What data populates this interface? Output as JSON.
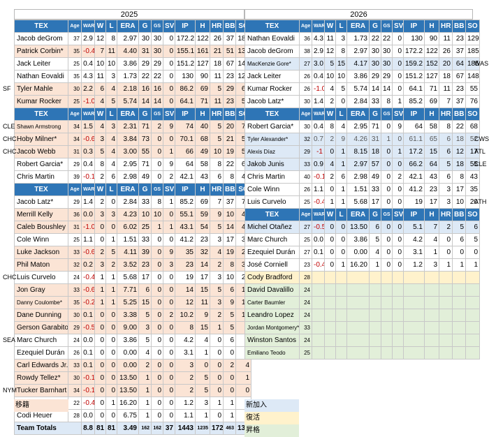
{
  "years": {
    "left": "2025",
    "right": "2026"
  },
  "headers": [
    "TEX",
    "Age",
    "WAR",
    "W",
    "L",
    "ERA",
    "G",
    "GS",
    "SV",
    "IP",
    "H",
    "HR",
    "BB",
    "SO"
  ],
  "left_notes": {
    "b1_4": "SF",
    "b2_0": "CLE",
    "b2_1": "CHC",
    "b2_2": "CHC",
    "b3_6": "CHC",
    "b3_11": "SEA",
    "b3_15": "NYM"
  },
  "right_notes": {
    "b1_2": "WAS",
    "b2_1": "CWS",
    "b2_2": "ATL",
    "b2_3": "CLE",
    "b3_0": "ATH"
  },
  "left": {
    "block1": [
      {
        "s": "plain",
        "name": "Jacob deGrom",
        "age": "37",
        "war": "2.9",
        "w": "12",
        "l": "8",
        "era": "2.97",
        "g": "30",
        "gs": "30",
        "sv": "0",
        "ip": "172.2",
        "h": "122",
        "hr": "26",
        "bb": "37",
        "so": "185"
      },
      {
        "s": "out",
        "name": "Patrick Corbin*",
        "age": "35",
        "war": "-0.4",
        "w": "7",
        "l": "11",
        "era": "4.40",
        "g": "31",
        "gs": "30",
        "sv": "0",
        "ip": "155.1",
        "h": "161",
        "hr": "21",
        "bb": "51",
        "so": "131"
      },
      {
        "s": "plain",
        "name": "Jack Leiter",
        "age": "25",
        "war": "0.4",
        "w": "10",
        "l": "10",
        "era": "3.86",
        "g": "29",
        "gs": "29",
        "sv": "0",
        "ip": "151.2",
        "h": "127",
        "hr": "18",
        "bb": "67",
        "so": "148"
      },
      {
        "s": "plain",
        "name": "Nathan Eovaldi",
        "age": "35",
        "war": "4.3",
        "w": "11",
        "l": "3",
        "era": "1.73",
        "g": "22",
        "gs": "22",
        "sv": "0",
        "ip": "130",
        "h": "90",
        "hr": "11",
        "bb": "23",
        "so": "129"
      },
      {
        "s": "out",
        "name": "Tyler Mahle",
        "age": "30",
        "war": "2.2",
        "w": "6",
        "l": "4",
        "era": "2.18",
        "g": "16",
        "gs": "16",
        "sv": "0",
        "ip": "86.2",
        "h": "69",
        "hr": "5",
        "bb": "29",
        "so": "66"
      },
      {
        "s": "out",
        "name": "Kumar Rocker",
        "age": "25",
        "war": "-1.0",
        "w": "4",
        "l": "5",
        "era": "5.74",
        "g": "14",
        "gs": "14",
        "sv": "0",
        "ip": "64.1",
        "h": "71",
        "hr": "11",
        "bb": "23",
        "so": "55"
      }
    ],
    "block2": [
      {
        "s": "out",
        "name": "Shawn Armstrong",
        "sm": true,
        "age": "34",
        "war": "1.5",
        "w": "4",
        "l": "3",
        "era": "2.31",
        "g": "71",
        "gs": "2",
        "sv": "9",
        "ip": "74",
        "h": "40",
        "hr": "5",
        "bb": "20",
        "so": "74"
      },
      {
        "s": "out",
        "name": "Hoby Milner*",
        "age": "34",
        "war": "-0.6",
        "w": "3",
        "l": "4",
        "era": "3.84",
        "g": "73",
        "gs": "0",
        "sv": "0",
        "ip": "70.1",
        "h": "68",
        "hr": "5",
        "bb": "21",
        "so": "58"
      },
      {
        "s": "out",
        "name": "Jacob Webb",
        "age": "31",
        "war": "0.3",
        "w": "5",
        "l": "4",
        "era": "3.00",
        "g": "55",
        "gs": "0",
        "sv": "1",
        "ip": "66",
        "h": "49",
        "hr": "10",
        "bb": "19",
        "so": "58"
      },
      {
        "s": "plain",
        "name": "Robert Garcia*",
        "age": "29",
        "war": "0.4",
        "w": "8",
        "l": "4",
        "era": "2.95",
        "g": "71",
        "gs": "0",
        "sv": "9",
        "ip": "64",
        "h": "58",
        "hr": "8",
        "bb": "22",
        "so": "68"
      },
      {
        "s": "plain",
        "name": "Chris Martin",
        "age": "39",
        "war": "-0.1",
        "w": "2",
        "l": "6",
        "era": "2.98",
        "g": "49",
        "gs": "0",
        "sv": "2",
        "ip": "42.1",
        "h": "43",
        "hr": "6",
        "bb": "8",
        "so": "43"
      }
    ],
    "block3": [
      {
        "s": "plain",
        "name": "Jacob Latz*",
        "age": "29",
        "war": "1.4",
        "w": "2",
        "l": "0",
        "era": "2.84",
        "g": "33",
        "gs": "8",
        "sv": "1",
        "ip": "85.2",
        "h": "69",
        "hr": "7",
        "bb": "37",
        "so": "76"
      },
      {
        "s": "out",
        "name": "Merrill Kelly",
        "age": "36",
        "war": "0.0",
        "w": "3",
        "l": "3",
        "era": "4.23",
        "g": "10",
        "gs": "10",
        "sv": "0",
        "ip": "55.1",
        "h": "59",
        "hr": "9",
        "bb": "10",
        "so": "46"
      },
      {
        "s": "out",
        "name": "Caleb Boushley",
        "age": "31",
        "war": "-1.0",
        "w": "0",
        "l": "0",
        "era": "6.02",
        "g": "25",
        "gs": "1",
        "sv": "1",
        "ip": "43.1",
        "h": "54",
        "hr": "5",
        "bb": "14",
        "so": "41"
      },
      {
        "s": "plain",
        "name": "Cole Winn",
        "age": "25",
        "war": "1.1",
        "w": "0",
        "l": "1",
        "era": "1.51",
        "g": "33",
        "gs": "0",
        "sv": "0",
        "ip": "41.2",
        "h": "23",
        "hr": "3",
        "bb": "17",
        "so": "35"
      },
      {
        "s": "out",
        "name": "Luke Jackson",
        "age": "33",
        "war": "-0.6",
        "w": "2",
        "l": "5",
        "era": "4.11",
        "g": "39",
        "gs": "0",
        "sv": "9",
        "ip": "35",
        "h": "32",
        "hr": "4",
        "bb": "19",
        "so": "24"
      },
      {
        "s": "out",
        "name": "Phil Maton",
        "age": "32",
        "war": "0.2",
        "w": "3",
        "l": "2",
        "era": "3.52",
        "g": "23",
        "gs": "0",
        "sv": "3",
        "ip": "23",
        "h": "14",
        "hr": "2",
        "bb": "8",
        "so": "34"
      },
      {
        "s": "plain",
        "name": "Luis Curvelo",
        "age": "24",
        "war": "-0.4",
        "w": "1",
        "l": "1",
        "era": "5.68",
        "g": "17",
        "gs": "0",
        "sv": "0",
        "ip": "19",
        "h": "17",
        "hr": "3",
        "bb": "10",
        "so": "20"
      },
      {
        "s": "out",
        "name": "Jon Gray",
        "age": "33",
        "war": "-0.6",
        "w": "1",
        "l": "1",
        "era": "7.71",
        "g": "6",
        "gs": "0",
        "sv": "0",
        "ip": "14",
        "h": "15",
        "hr": "5",
        "bb": "6",
        "so": "12"
      },
      {
        "s": "out",
        "name": "Danny Coulombe*",
        "sm": true,
        "age": "35",
        "war": "-0.2",
        "w": "1",
        "l": "1",
        "era": "5.25",
        "g": "15",
        "gs": "0",
        "sv": "0",
        "ip": "12",
        "h": "11",
        "hr": "3",
        "bb": "9",
        "so": "12"
      },
      {
        "s": "out",
        "name": "Dane Dunning",
        "age": "30",
        "war": "0.1",
        "w": "0",
        "l": "0",
        "era": "3.38",
        "g": "5",
        "gs": "0",
        "sv": "2",
        "ip": "10.2",
        "h": "9",
        "hr": "2",
        "bb": "5",
        "so": "10"
      },
      {
        "s": "out",
        "name": "Gerson Garabito",
        "age": "29",
        "war": "-0.5",
        "w": "0",
        "l": "0",
        "era": "9.00",
        "g": "3",
        "gs": "0",
        "sv": "0",
        "ip": "8",
        "h": "15",
        "hr": "1",
        "bb": "5",
        "so": "4"
      },
      {
        "s": "plain",
        "name": "Marc Church",
        "age": "24",
        "war": "0.0",
        "w": "0",
        "l": "0",
        "era": "3.86",
        "g": "5",
        "gs": "0",
        "sv": "0",
        "ip": "4.2",
        "h": "4",
        "hr": "0",
        "bb": "6",
        "so": "5"
      },
      {
        "s": "plain",
        "name": "Ezequiel Durán",
        "age": "26",
        "war": "0.1",
        "w": "0",
        "l": "0",
        "era": "0.00",
        "g": "4",
        "gs": "0",
        "sv": "0",
        "ip": "3.1",
        "h": "1",
        "hr": "0",
        "bb": "0",
        "so": "0"
      },
      {
        "s": "out",
        "name": "Carl Edwards Jr.",
        "age": "33",
        "war": "0.1",
        "w": "0",
        "l": "0",
        "era": "0.00",
        "g": "2",
        "gs": "0",
        "sv": "0",
        "ip": "3",
        "h": "0",
        "hr": "0",
        "bb": "2",
        "so": "4"
      },
      {
        "s": "out",
        "name": "Rowdy Tellez*",
        "age": "30",
        "war": "-0.1",
        "w": "0",
        "l": "0",
        "era": "13.50",
        "g": "1",
        "gs": "0",
        "sv": "0",
        "ip": "2",
        "h": "5",
        "hr": "0",
        "bb": "0",
        "so": "1"
      },
      {
        "s": "out",
        "name": "Tucker Barnhart",
        "age": "34",
        "war": "-0.1",
        "w": "0",
        "l": "0",
        "era": "13.50",
        "g": "1",
        "gs": "0",
        "sv": "0",
        "ip": "2",
        "h": "5",
        "hr": "0",
        "bb": "0",
        "so": "0"
      },
      {
        "s": "plain",
        "name": "José Corniell",
        "age": "22",
        "war": "-0.4",
        "w": "0",
        "l": "1",
        "era": "16.20",
        "g": "1",
        "gs": "0",
        "sv": "0",
        "ip": "1.2",
        "h": "3",
        "hr": "1",
        "bb": "1",
        "so": "1"
      },
      {
        "s": "plain",
        "name": "Codi Heuer",
        "age": "28",
        "war": "0.0",
        "w": "0",
        "l": "0",
        "era": "6.75",
        "g": "1",
        "gs": "0",
        "sv": "0",
        "ip": "1.1",
        "h": "1",
        "hr": "0",
        "bb": "1",
        "so": "0"
      }
    ],
    "totals": {
      "label": "Team Totals",
      "war": "8.8",
      "w": "81",
      "l": "81",
      "era": "3.49",
      "g": "162",
      "gs": "162",
      "sv": "37",
      "ip": "1443",
      "h": "1235",
      "hr": "172",
      "bb": "463",
      "so": "1344"
    }
  },
  "right": {
    "block1": [
      {
        "s": "plain",
        "name": "Nathan Eovaldi",
        "age": "36",
        "war": "4.3",
        "w": "11",
        "l": "3",
        "era": "1.73",
        "g": "22",
        "gs": "22",
        "sv": "0",
        "ip": "130",
        "h": "90",
        "hr": "11",
        "bb": "23",
        "so": "129"
      },
      {
        "s": "plain",
        "name": "Jacob deGrom",
        "age": "38",
        "war": "2.9",
        "w": "12",
        "l": "8",
        "era": "2.97",
        "g": "30",
        "gs": "30",
        "sv": "0",
        "ip": "172.2",
        "h": "122",
        "hr": "26",
        "bb": "37",
        "so": "185"
      },
      {
        "s": "new",
        "name": "MacKenzie Gore*",
        "sm": true,
        "age": "27",
        "war": "3.0",
        "w": "5",
        "l": "15",
        "era": "4.17",
        "g": "30",
        "gs": "30",
        "sv": "0",
        "ip": "159.2",
        "h": "152",
        "hr": "20",
        "bb": "64",
        "so": "185"
      },
      {
        "s": "plain",
        "name": "Jack Leiter",
        "age": "26",
        "war": "0.4",
        "w": "10",
        "l": "10",
        "era": "3.86",
        "g": "29",
        "gs": "29",
        "sv": "0",
        "ip": "151.2",
        "h": "127",
        "hr": "18",
        "bb": "67",
        "so": "148"
      },
      {
        "s": "plain",
        "name": "Kumar Rocker",
        "age": "26",
        "war": "-1.0",
        "w": "4",
        "l": "5",
        "era": "5.74",
        "g": "14",
        "gs": "14",
        "sv": "0",
        "ip": "64.1",
        "h": "71",
        "hr": "11",
        "bb": "23",
        "so": "55"
      },
      {
        "s": "plain",
        "name": "Jacob Latz*",
        "age": "30",
        "war": "1.4",
        "w": "2",
        "l": "0",
        "era": "2.84",
        "g": "33",
        "gs": "8",
        "sv": "1",
        "ip": "85.2",
        "h": "69",
        "hr": "7",
        "bb": "37",
        "so": "76"
      }
    ],
    "block2": [
      {
        "s": "plain",
        "name": "Robert Garcia*",
        "age": "30",
        "war": "0.4",
        "w": "8",
        "l": "4",
        "era": "2.95",
        "g": "71",
        "gs": "0",
        "sv": "9",
        "ip": "64",
        "h": "58",
        "hr": "8",
        "bb": "22",
        "so": "68"
      },
      {
        "s": "new",
        "dim": true,
        "name": "Tyler Alexander*",
        "sm": true,
        "age": "32",
        "war": "0.7",
        "w": "2",
        "l": "9",
        "era": "4.26",
        "g": "31",
        "gs": "1",
        "sv": "0",
        "ip": "61.1",
        "h": "65",
        "hr": "6",
        "bb": "18",
        "so": "52"
      },
      {
        "s": "new",
        "name": "Alexis Díaz",
        "sm": true,
        "age": "29",
        "war": "-1",
        "w": "0",
        "l": "1",
        "era": "8.15",
        "g": "18",
        "gs": "0",
        "sv": "1",
        "ip": "17.2",
        "h": "15",
        "hr": "6",
        "bb": "12",
        "so": "17"
      },
      {
        "s": "new",
        "name": "Jakob Junis",
        "age": "33",
        "war": "0.9",
        "w": "4",
        "l": "1",
        "era": "2.97",
        "g": "57",
        "gs": "0",
        "sv": "0",
        "ip": "66.2",
        "h": "64",
        "hr": "5",
        "bb": "18",
        "so": "55"
      },
      {
        "s": "plain",
        "name": "Chris Martin",
        "age": "40",
        "war": "-0.1",
        "w": "2",
        "l": "6",
        "era": "2.98",
        "g": "49",
        "gs": "0",
        "sv": "2",
        "ip": "42.1",
        "h": "43",
        "hr": "6",
        "bb": "8",
        "so": "43"
      },
      {
        "s": "plain",
        "name": "Cole Winn",
        "age": "26",
        "war": "1.1",
        "w": "0",
        "l": "1",
        "era": "1.51",
        "g": "33",
        "gs": "0",
        "sv": "0",
        "ip": "41.2",
        "h": "23",
        "hr": "3",
        "bb": "17",
        "so": "35"
      },
      {
        "s": "plain",
        "name": "Luis Curvelo",
        "age": "25",
        "war": "-0.4",
        "w": "1",
        "l": "1",
        "era": "5.68",
        "g": "17",
        "gs": "0",
        "sv": "0",
        "ip": "19",
        "h": "17",
        "hr": "3",
        "bb": "10",
        "so": "20"
      }
    ],
    "block3": [
      {
        "s": "new",
        "name": "Michel Otañez",
        "age": "27",
        "war": "-0.5",
        "w": "0",
        "l": "0",
        "era": "13.50",
        "g": "6",
        "gs": "0",
        "sv": "0",
        "ip": "5.1",
        "h": "7",
        "hr": "2",
        "bb": "5",
        "so": "6"
      },
      {
        "s": "plain",
        "name": "Marc Church",
        "age": "25",
        "war": "0.0",
        "w": "0",
        "l": "0",
        "era": "3.86",
        "g": "5",
        "gs": "0",
        "sv": "0",
        "ip": "4.2",
        "h": "4",
        "hr": "0",
        "bb": "6",
        "so": "5"
      },
      {
        "s": "plain",
        "name": "Ezequiel Durán",
        "age": "27",
        "war": "0.1",
        "w": "0",
        "l": "0",
        "era": "0.00",
        "g": "4",
        "gs": "0",
        "sv": "0",
        "ip": "3.1",
        "h": "1",
        "hr": "0",
        "bb": "0",
        "so": "0"
      },
      {
        "s": "plain",
        "name": "José Corniell",
        "age": "23",
        "war": "-0.4",
        "w": "0",
        "l": "1",
        "era": "16.20",
        "g": "1",
        "gs": "0",
        "sv": "0",
        "ip": "1.2",
        "h": "3",
        "hr": "1",
        "bb": "1",
        "so": "1"
      },
      {
        "s": "ret",
        "name": "Cody Bradford",
        "age": "28",
        "blank": true
      },
      {
        "s": "pro",
        "name": "David Davalillo",
        "age": "24",
        "blank": true
      },
      {
        "s": "pro",
        "name": "Carter Baumler",
        "sm": true,
        "age": "24",
        "blank": true
      },
      {
        "s": "pro",
        "name": "Leandro Lopez",
        "age": "24",
        "blank": true
      },
      {
        "s": "pro",
        "name": "Jordan Montgomery*",
        "sm": true,
        "age": "33",
        "blank": true
      },
      {
        "s": "pro",
        "name": "Winston Santos",
        "age": "24",
        "blank": true
      },
      {
        "s": "pro",
        "name": "Emiliano Teodo",
        "sm": true,
        "age": "25",
        "blank": true
      }
    ]
  },
  "legend": {
    "out": "移籍",
    "new": "新加入",
    "ret": "復活",
    "pro": "昇格"
  },
  "colors": {
    "header": "#2e75b6",
    "out": "#fbe4d5",
    "new": "#dde9f6",
    "ret": "#fff2cc",
    "pro": "#e2efd9",
    "negative": "#c00000"
  }
}
